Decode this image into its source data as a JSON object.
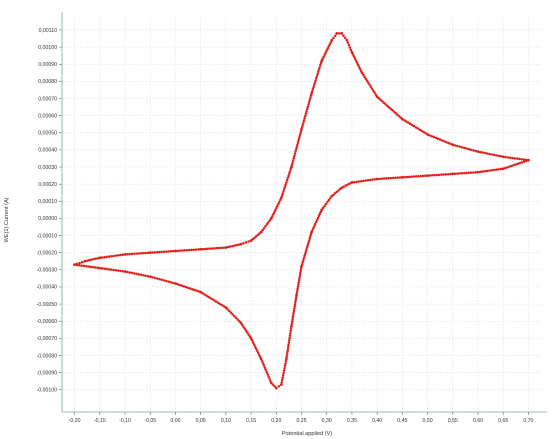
{
  "chart_data": {
    "type": "scatter",
    "title": "",
    "xlabel": "Potential applied (V)",
    "ylabel": "WE(1).Current (A)",
    "xlim": [
      -0.225,
      0.725
    ],
    "ylim": [
      -0.00113,
      0.00117
    ],
    "grid": true,
    "legend": "none",
    "x_ticks": [
      "-0,20",
      "-0,15",
      "-0,10",
      "-0,05",
      "0,00",
      "0,05",
      "0,10",
      "0,15",
      "0,20",
      "0,25",
      "0,30",
      "0,35",
      "0,40",
      "0,45",
      "0,50",
      "0,55",
      "0,60",
      "0,65",
      "0,70"
    ],
    "y_ticks": [
      "0,00110",
      "0,00100",
      "0,00090",
      "0,00080",
      "0,00070",
      "0,00060",
      "0,00050",
      "0,00040",
      "0,00030",
      "0,00020",
      "0,00010",
      "0,00000",
      "-0,00010",
      "-0,00020",
      "-0,00030",
      "-0,00040",
      "-0,00050",
      "-0,00060",
      "-0,00070",
      "-0,00080",
      "-0,00090",
      "-0,00100"
    ],
    "series": [
      {
        "color": "#e0201b",
        "x": [
          -0.2,
          -0.18,
          -0.15,
          -0.1,
          -0.05,
          0.0,
          0.05,
          0.1,
          0.13,
          0.15,
          0.17,
          0.19,
          0.21,
          0.23,
          0.25,
          0.27,
          0.29,
          0.31,
          0.32,
          0.33,
          0.34,
          0.35,
          0.37,
          0.4,
          0.45,
          0.5,
          0.55,
          0.6,
          0.65,
          0.7,
          0.65,
          0.6,
          0.55,
          0.5,
          0.45,
          0.4,
          0.35,
          0.33,
          0.31,
          0.29,
          0.27,
          0.25,
          0.24,
          0.23,
          0.22,
          0.21,
          0.2,
          0.19,
          0.17,
          0.15,
          0.13,
          0.1,
          0.05,
          0.0,
          -0.05,
          -0.1,
          -0.15,
          -0.2
        ],
        "y": [
          -0.00027,
          -0.00025,
          -0.00023,
          -0.00021,
          -0.0002,
          -0.00019,
          -0.00018,
          -0.00017,
          -0.00015,
          -0.00013,
          -8e-05,
          0.0,
          0.00012,
          0.0003,
          0.00052,
          0.00073,
          0.00092,
          0.00104,
          0.00108,
          0.00108,
          0.00104,
          0.00097,
          0.00085,
          0.00071,
          0.00058,
          0.00049,
          0.00043,
          0.00039,
          0.00036,
          0.00034,
          0.00029,
          0.00027,
          0.00026,
          0.00025,
          0.00024,
          0.00023,
          0.00021,
          0.00018,
          0.00013,
          5e-05,
          -8e-05,
          -0.00028,
          -0.00045,
          -0.00063,
          -0.00082,
          -0.00097,
          -0.00099,
          -0.00096,
          -0.00082,
          -0.0007,
          -0.00061,
          -0.00052,
          -0.00043,
          -0.00038,
          -0.00034,
          -0.00031,
          -0.00029,
          -0.00027
        ]
      }
    ]
  }
}
